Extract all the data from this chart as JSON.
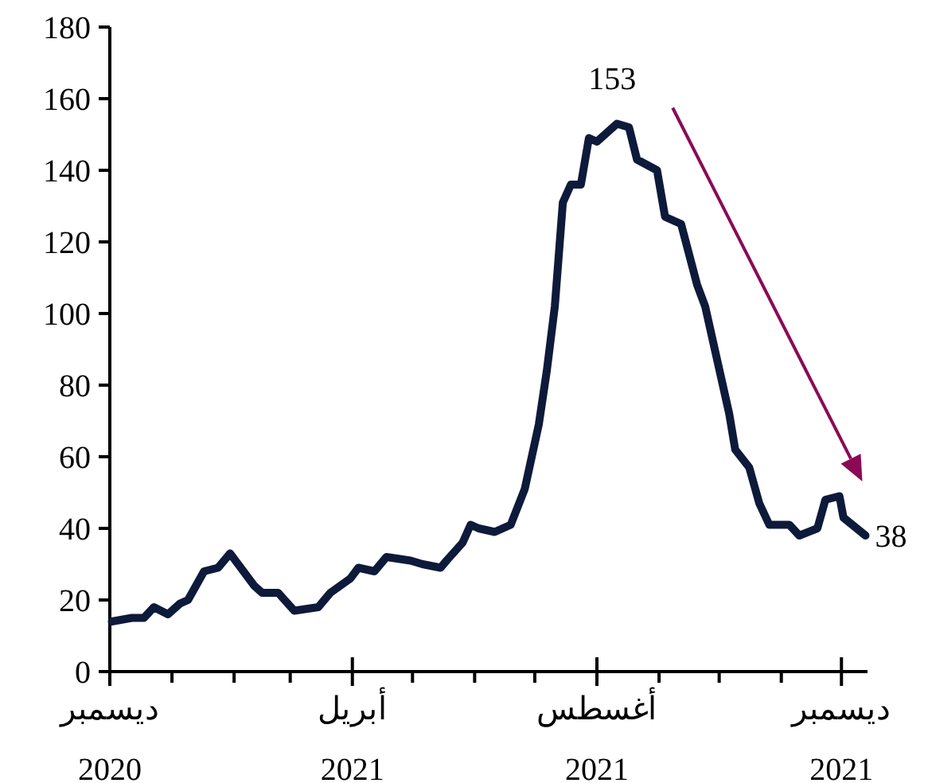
{
  "chart_data": {
    "type": "line",
    "x": [
      "2020-12-02",
      "2020-12-12",
      "2020-12-18",
      "2020-12-23",
      "2020-12-30",
      "2021-01-05",
      "2021-01-09",
      "2021-01-17",
      "2021-01-24",
      "2021-01-30",
      "2021-02-03",
      "2021-02-11",
      "2021-02-15",
      "2021-02-23",
      "2021-03-03",
      "2021-03-15",
      "2021-03-21",
      "2021-03-31",
      "2021-04-04",
      "2021-04-12",
      "2021-04-18",
      "2021-04-30",
      "2021-05-06",
      "2021-05-15",
      "2021-05-18",
      "2021-05-26",
      "2021-05-30",
      "2021-06-03",
      "2021-06-11",
      "2021-06-19",
      "2021-06-26",
      "2021-07-03",
      "2021-07-07",
      "2021-07-11",
      "2021-07-15",
      "2021-07-19",
      "2021-07-24",
      "2021-07-28",
      "2021-08-01",
      "2021-08-11",
      "2021-08-17",
      "2021-08-21",
      "2021-08-31",
      "2021-09-04",
      "2021-09-12",
      "2021-09-20",
      "2021-09-24",
      "2021-09-30",
      "2021-10-06",
      "2021-10-09",
      "2021-10-16",
      "2021-10-21",
      "2021-10-26",
      "2021-11-05",
      "2021-11-10",
      "2021-11-19",
      "2021-11-23",
      "2021-11-30",
      "2021-12-02",
      "2021-12-13"
    ],
    "series": [
      {
        "color": "#0d1a3a",
        "values": [
          14,
          15,
          15,
          18,
          16,
          19,
          20,
          28,
          29,
          33,
          30,
          24,
          22,
          22,
          17,
          18,
          22,
          26,
          29,
          28,
          32,
          31,
          30,
          29,
          31,
          36,
          41,
          40,
          39,
          41,
          51,
          69,
          84,
          102,
          131,
          136,
          136,
          149,
          148,
          153,
          152,
          143,
          140,
          127,
          125,
          108,
          102,
          87,
          72,
          62,
          57,
          47,
          41,
          41,
          38,
          40,
          48,
          49,
          43,
          38
        ]
      }
    ],
    "xlim": [
      "2020-12-01",
      "2021-12-14"
    ],
    "xticks": [
      {
        "value": "2020-12-01",
        "label": "ديسمبر\n2020"
      },
      {
        "value": "2021-01-01",
        "label": null
      },
      {
        "value": "2021-02-01",
        "label": null
      },
      {
        "value": "2021-03-01",
        "label": null
      },
      {
        "value": "2021-04-01",
        "label": "أبريل\n2021"
      },
      {
        "value": "2021-05-01",
        "label": null
      },
      {
        "value": "2021-06-01",
        "label": null
      },
      {
        "value": "2021-07-01",
        "label": null
      },
      {
        "value": "2021-08-01",
        "label": "أغسطس\n2021"
      },
      {
        "value": "2021-09-01",
        "label": null
      },
      {
        "value": "2021-10-01",
        "label": null
      },
      {
        "value": "2021-11-01",
        "label": null
      },
      {
        "value": "2021-12-01",
        "label": "ديسمبر\n2021"
      }
    ],
    "ylim": [
      0,
      180
    ],
    "yticks": [
      0,
      20,
      40,
      60,
      80,
      100,
      120,
      140,
      160,
      180
    ],
    "grid": false,
    "line_style": "solid",
    "annotations": [
      {
        "text": "153",
        "x": "2021-08-11",
        "y": 153
      },
      {
        "text": "38",
        "x": "2021-12-13",
        "y": 38
      }
    ]
  }
}
